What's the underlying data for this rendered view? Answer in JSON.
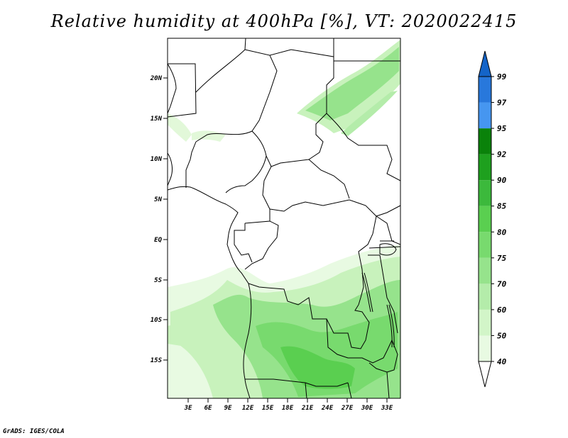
{
  "title": "Relative humidity at 400hPa [%], VT: 2020022415",
  "credit": "GrADS: IGES/COLA",
  "lat_labels": [
    "20N",
    "15N",
    "10N",
    "5N",
    "EQ",
    "5S",
    "10S",
    "15S"
  ],
  "lon_labels": [
    "3E",
    "6E",
    "9E",
    "12E",
    "15E",
    "18E",
    "21E",
    "24E",
    "27E",
    "30E",
    "33E"
  ],
  "colorbar": {
    "levels": [
      "40",
      "50",
      "60",
      "70",
      "75",
      "80",
      "85",
      "90",
      "92",
      "95",
      "97",
      "99"
    ],
    "colors": [
      "#ffffff",
      "#e8fae2",
      "#d2f5c8",
      "#b4ecaa",
      "#96e38c",
      "#78da6e",
      "#5acf50",
      "#3cb93c",
      "#1ea01e",
      "#0a820a",
      "#4696f0",
      "#2878dc",
      "#1464c8"
    ]
  },
  "map_legend": {
    "domain": "Central / West Africa",
    "lat_range": [
      "20S",
      "24N"
    ],
    "lon_range": [
      "0E",
      "35E"
    ]
  }
}
